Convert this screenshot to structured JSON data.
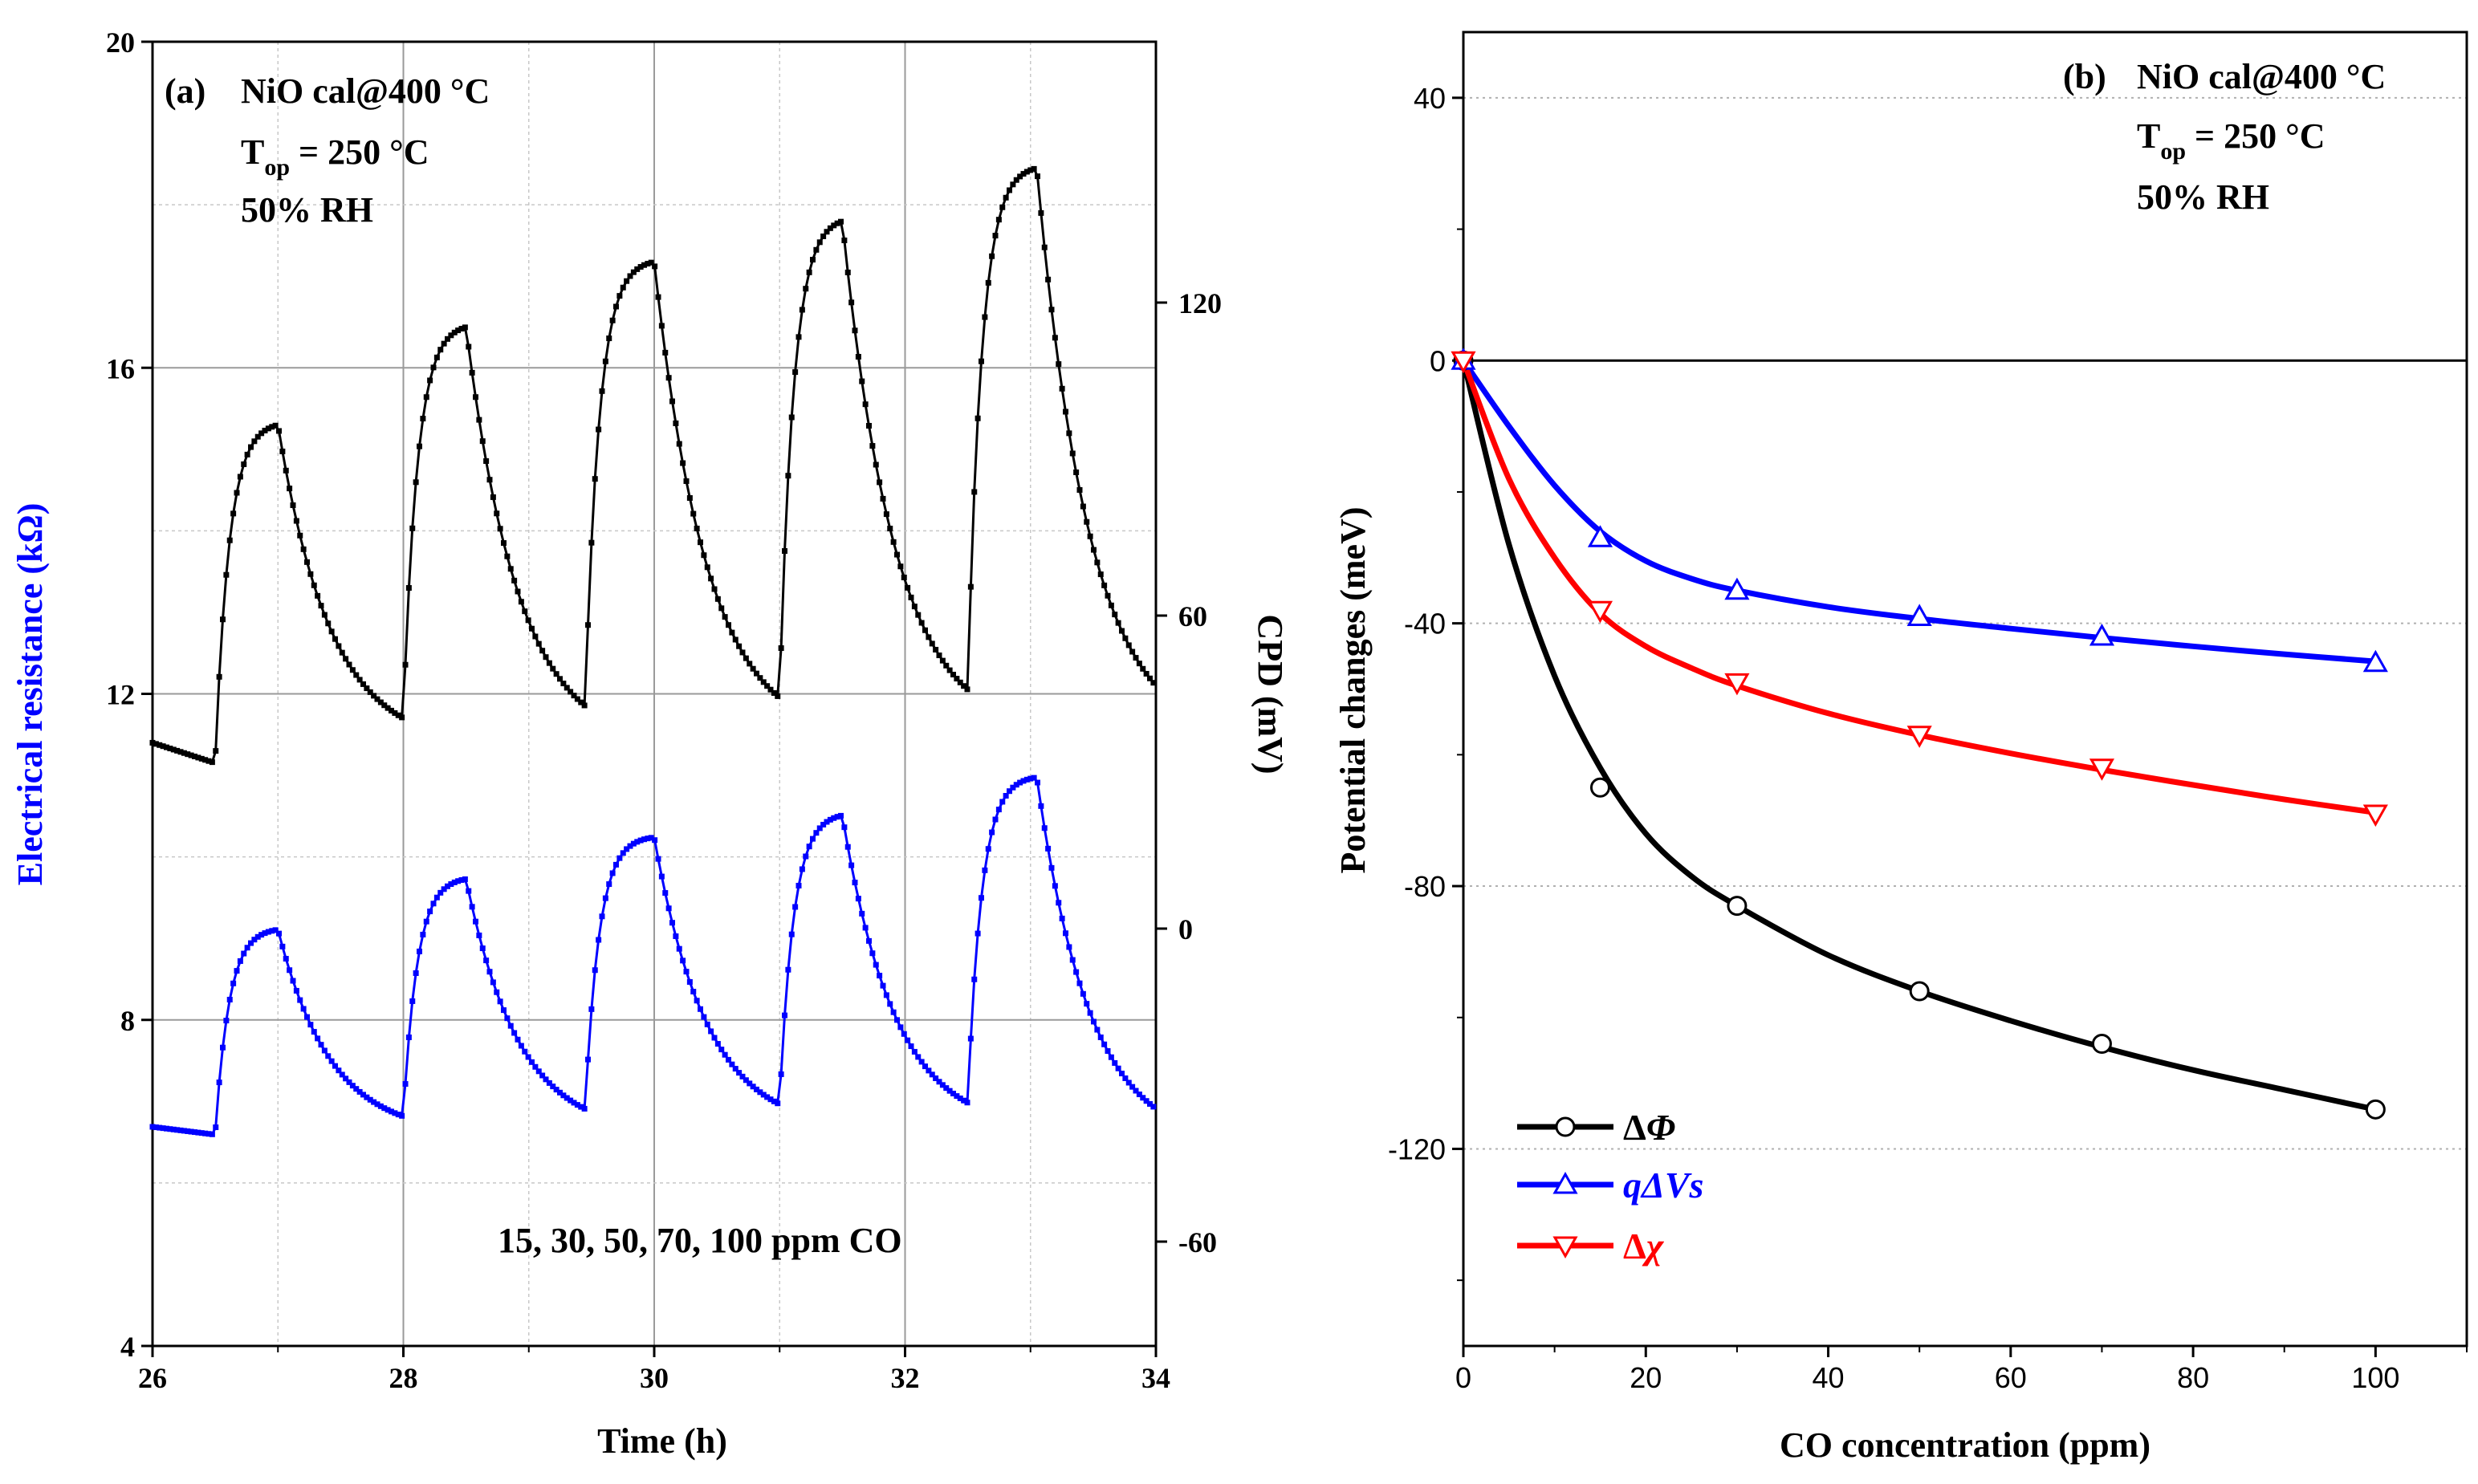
{
  "colors": {
    "black": "#000000",
    "blue": "#0000ff",
    "red": "#ff0000",
    "grid": "#c0c0c0"
  },
  "chart_data": [
    {
      "type": "line",
      "panel": "a",
      "annotation": {
        "label": "(a)",
        "line1": "NiO cal@400 °C",
        "line2_main": "T",
        "line2_sub": "op",
        "line2_rest": " = 250 °C",
        "line3": "50% RH"
      },
      "note": "15, 30, 50, 70, 100 ppm CO",
      "xlabel": "Time (h)",
      "ylabel": "Electrical resistance (kΩ)",
      "ylabel_right": "CPD (mV)",
      "xlim": [
        26,
        34
      ],
      "ylim": [
        4,
        20
      ],
      "ylim_right": [
        -80,
        170
      ],
      "x_ticks": [
        "26",
        "28",
        "30",
        "32",
        "34"
      ],
      "y_ticks": [
        "4",
        "8",
        "12",
        "16",
        "20"
      ],
      "y_ticks_right": [
        "-60",
        "0",
        "60",
        "120"
      ],
      "pulses": [
        {
          "start": 26.5,
          "end": 27.0,
          "r_base": 11.15,
          "r_peak": 15.3,
          "cpd_base": -39.5,
          "cpd_peak": -0.2,
          "ppm": 15
        },
        {
          "start": 28.0,
          "end": 28.5,
          "r_base": 11.7,
          "r_peak": 16.5,
          "cpd_base": -36.0,
          "cpd_peak": 9.5,
          "ppm": 30
        },
        {
          "start": 29.45,
          "end": 30.0,
          "r_base": 11.85,
          "r_peak": 17.3,
          "cpd_base": -34.6,
          "cpd_peak": 17.5,
          "ppm": 50
        },
        {
          "start": 31.0,
          "end": 31.5,
          "r_base": 11.95,
          "r_peak": 17.8,
          "cpd_base": -33.7,
          "cpd_peak": 21.7,
          "ppm": 70
        },
        {
          "start": 32.5,
          "end": 33.05,
          "r_base": 12.05,
          "r_peak": 18.45,
          "cpd_base": -33.4,
          "cpd_peak": 29.0,
          "ppm": 100
        }
      ],
      "series": [
        {
          "name": "Electrical resistance",
          "axis": "left",
          "color": "#000000",
          "start_value": 11.4,
          "end_value": 12.1
        },
        {
          "name": "CPD",
          "axis": "right",
          "color": "#0000ff",
          "start_value": -38.0,
          "end_value": -34.5
        }
      ]
    },
    {
      "type": "line",
      "panel": "b",
      "annotation": {
        "label": "(b)",
        "line1": "NiO cal@400 °C",
        "line2_main": "T",
        "line2_sub": "op",
        "line2_rest": " = 250 °C",
        "line3": "50% RH"
      },
      "xlabel": "CO concentration (ppm)",
      "ylabel": "Potential changes (meV)",
      "xlim": [
        0,
        110
      ],
      "ylim": [
        -150,
        50
      ],
      "x_ticks": [
        "0",
        "20",
        "40",
        "60",
        "80",
        "100"
      ],
      "y_ticks": [
        "40",
        "0",
        "-40",
        "-80",
        "-120"
      ],
      "x": [
        0,
        15,
        30,
        50,
        70,
        100
      ],
      "series": [
        {
          "name": "ΔΦ",
          "marker": "circle",
          "color": "#000000",
          "values": [
            0,
            -65,
            -83,
            -96,
            -104,
            -114
          ]
        },
        {
          "name": "qΔVs",
          "marker": "triangle-up",
          "color": "#0000ff",
          "values": [
            0,
            -27,
            -35,
            -39,
            -42,
            -46
          ]
        },
        {
          "name": "Δχ",
          "marker": "triangle-down",
          "color": "#ff0000",
          "values": [
            0,
            -38,
            -49,
            -57,
            -62,
            -69
          ]
        }
      ],
      "fits": [
        {
          "name": "ΔΦ fit",
          "color": "#000000",
          "x": [
            0,
            5,
            10,
            15,
            20,
            25,
            30,
            40,
            50,
            60,
            70,
            80,
            90,
            100
          ],
          "values": [
            0,
            -28,
            -48,
            -62,
            -72,
            -78.5,
            -83,
            -90.5,
            -96,
            -100.5,
            -104.5,
            -108,
            -111,
            -114
          ]
        },
        {
          "name": "qΔVs fit",
          "color": "#0000ff",
          "x": [
            0,
            5,
            10,
            15,
            20,
            25,
            30,
            40,
            50,
            60,
            70,
            80,
            90,
            100
          ],
          "values": [
            0,
            -10,
            -19,
            -26,
            -30.5,
            -33.2,
            -35,
            -37.5,
            -39.3,
            -40.8,
            -42.2,
            -43.5,
            -44.7,
            -45.8
          ]
        },
        {
          "name": "Δχ fit",
          "color": "#ff0000",
          "x": [
            0,
            5,
            10,
            15,
            20,
            25,
            30,
            40,
            50,
            60,
            70,
            80,
            90,
            100
          ],
          "values": [
            0,
            -18,
            -30,
            -38.5,
            -43.5,
            -46.8,
            -49.5,
            -53.7,
            -57,
            -59.8,
            -62.3,
            -64.6,
            -66.8,
            -68.8
          ]
        }
      ],
      "legend": {
        "position": "bottom-left",
        "entries": [
          {
            "label_pre": "Δ",
            "label_main": "Φ",
            "italic_part": "Φ"
          },
          {
            "label_pre": "qΔ",
            "label_main": "Vs"
          },
          {
            "label_pre": "Δ",
            "label_main": "χ"
          }
        ]
      }
    }
  ]
}
